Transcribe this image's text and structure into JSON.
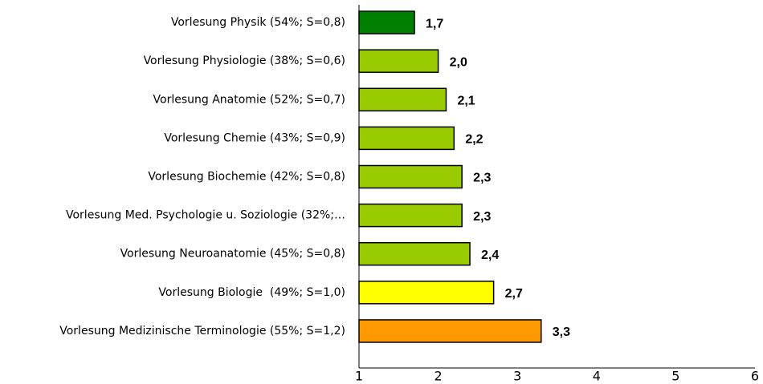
{
  "chart_data": {
    "type": "barh",
    "categories": [
      "Vorlesung Physik (54%; S=0,8)",
      "Vorlesung Physiologie (38%; S=0,6)",
      "Vorlesung Anatomie (52%; S=0,7)",
      "Vorlesung Chemie (43%; S=0,9)",
      "Vorlesung Biochemie (42%; S=0,8)",
      "Vorlesung Med. Psychologie u. Soziologie (32%;…",
      "Vorlesung Neuroanatomie (45%; S=0,8)",
      "Vorlesung Biologie  (49%; S=1,0)",
      "Vorlesung Medizinische Terminologie (55%; S=1,2)"
    ],
    "values": [
      1.7,
      2.0,
      2.1,
      2.2,
      2.3,
      2.3,
      2.4,
      2.7,
      3.3
    ],
    "value_labels": [
      "1,7",
      "2,0",
      "2,1",
      "2,2",
      "2,3",
      "2,3",
      "2,4",
      "2,7",
      "3,3"
    ],
    "colors": [
      "#008000",
      "#99cc00",
      "#99cc00",
      "#99cc00",
      "#99cc00",
      "#99cc00",
      "#99cc00",
      "#ffff00",
      "#ff9900"
    ],
    "xlim": [
      1,
      6
    ],
    "xticks": [
      1,
      2,
      3,
      4,
      5,
      6
    ],
    "grid": false
  }
}
